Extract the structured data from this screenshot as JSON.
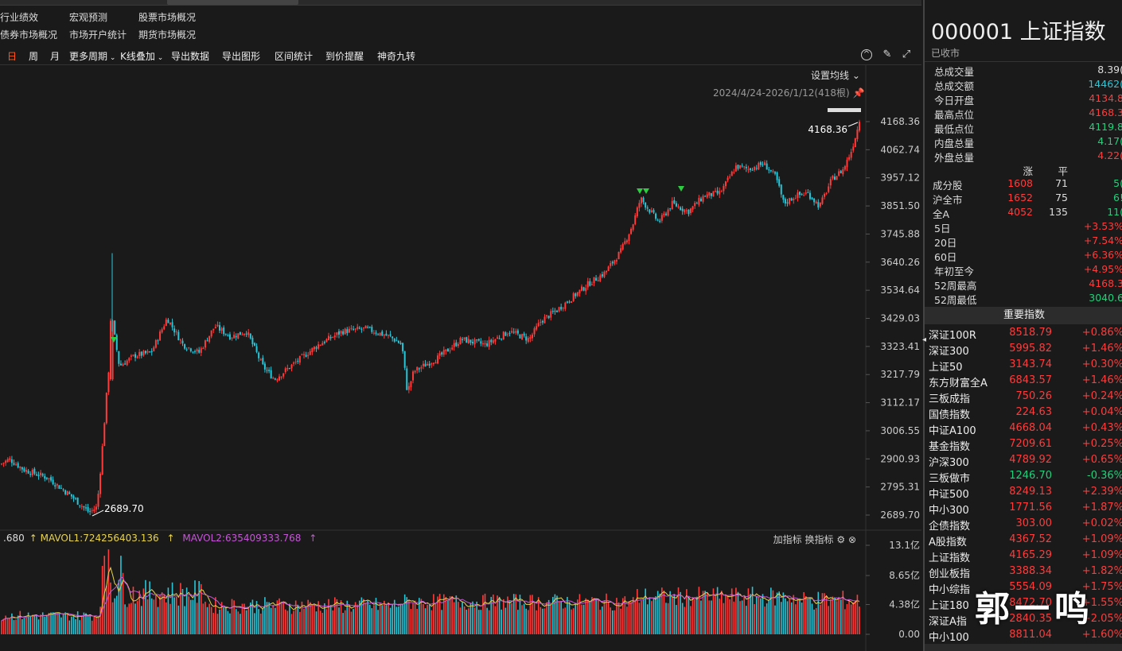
{
  "links": [
    "行业绩效",
    "宏观预测",
    "股票市场概况",
    "债券市场概况",
    "市场开户统计",
    "期货市场概况"
  ],
  "toolbar": {
    "items": [
      "日",
      "周",
      "月",
      "更多周期",
      "K线叠加",
      "导出数据",
      "导出图形",
      "区间统计",
      "到价提醒",
      "神奇九转"
    ],
    "active": "日"
  },
  "chart": {
    "set_ma": "设置均线",
    "range": "2024/4/24-2026/1/12(418根)",
    "high_label": "4168.36",
    "low_label": "2689.70",
    "y_ticks": [
      "4168.36",
      "4062.74",
      "3957.12",
      "3851.50",
      "3745.88",
      "3640.26",
      "3534.64",
      "3429.03",
      "3323.41",
      "3217.79",
      "3112.17",
      "3006.55",
      "2900.93",
      "2795.31",
      "2689.70"
    ],
    "vol_ticks": [
      "13.1亿",
      "8.65亿",
      "4.38亿",
      "0.00"
    ]
  },
  "vol_legend": {
    "prefix": ".680",
    "mavol1": "MAVOL1:724256403.136",
    "mavol2": "MAVOL2:635409333.768",
    "add": "加指标",
    "switch": "换指标"
  },
  "colors": {
    "up": "#ff3b3b",
    "down": "#29c6d8",
    "ma1": "#e8d44d",
    "ma2": "#c557d6",
    "bg": "#1a1a1a"
  },
  "stock": {
    "code_name": "000001 上证指数",
    "status": "已收市"
  },
  "stats": [
    {
      "label": "总成交量",
      "value": "8.39(",
      "color": "white"
    },
    {
      "label": "总成交额",
      "value": "14462(",
      "color": "cyan"
    },
    {
      "label": "今日开盘",
      "value": "4134.8",
      "color": "red"
    },
    {
      "label": "最高点位",
      "value": "4168.3",
      "color": "red"
    },
    {
      "label": "最低点位",
      "value": "4119.8",
      "color": "green"
    },
    {
      "label": "内盘总量",
      "value": "4.17(",
      "color": "green"
    },
    {
      "label": "外盘总量",
      "value": "4.22(",
      "color": "red"
    }
  ],
  "breadth": {
    "head": [
      "涨",
      "平",
      ""
    ],
    "rows": [
      {
        "label": "成分股",
        "up": "1608",
        "flat": "71",
        "down": "5("
      },
      {
        "label": "沪全市",
        "up": "1652",
        "flat": "75",
        "down": "6!"
      },
      {
        "label": "全A",
        "up": "4052",
        "flat": "135",
        "down": "11("
      }
    ]
  },
  "perf": [
    {
      "label": "5日",
      "value": "+3.53%"
    },
    {
      "label": "20日",
      "value": "+7.54%"
    },
    {
      "label": "60日",
      "value": "+6.36%"
    },
    {
      "label": "年初至今",
      "value": "+4.95%"
    },
    {
      "label": "52周最高",
      "value": "4168.3",
      "color": "red"
    },
    {
      "label": "52周最低",
      "value": "3040.6",
      "color": "green"
    }
  ],
  "indices_title": "重要指数",
  "indices": [
    {
      "name": "深证100R",
      "price": "8518.79",
      "chg": "+0.86%",
      "up": true
    },
    {
      "name": "深证300",
      "price": "5995.82",
      "chg": "+1.46%",
      "up": true
    },
    {
      "name": "上证50",
      "price": "3143.74",
      "chg": "+0.30%",
      "up": true
    },
    {
      "name": "东方财富全A",
      "price": "6843.57",
      "chg": "+1.46%",
      "up": true
    },
    {
      "name": "三板成指",
      "price": "750.26",
      "chg": "+0.24%",
      "up": true
    },
    {
      "name": "国债指数",
      "price": "224.63",
      "chg": "+0.04%",
      "up": true
    },
    {
      "name": "中证A100",
      "price": "4668.04",
      "chg": "+0.43%",
      "up": true
    },
    {
      "name": "基金指数",
      "price": "7209.61",
      "chg": "+0.25%",
      "up": true
    },
    {
      "name": "沪深300",
      "price": "4789.92",
      "chg": "+0.65%",
      "up": true
    },
    {
      "name": "三板做市",
      "price": "1246.70",
      "chg": "-0.36%",
      "up": false
    },
    {
      "name": "中证500",
      "price": "8249.13",
      "chg": "+2.39%",
      "up": true
    },
    {
      "name": "中小300",
      "price": "1771.56",
      "chg": "+1.87%",
      "up": true
    },
    {
      "name": "企债指数",
      "price": "303.00",
      "chg": "+0.02%",
      "up": true
    },
    {
      "name": "A股指数",
      "price": "4367.52",
      "chg": "+1.09%",
      "up": true
    },
    {
      "name": "上证指数",
      "price": "4165.29",
      "chg": "+1.09%",
      "up": true
    },
    {
      "name": "创业板指",
      "price": "3388.34",
      "chg": "+1.82%",
      "up": true
    },
    {
      "name": "中小综指",
      "price": "5554.09",
      "chg": "+1.75%",
      "up": true
    },
    {
      "name": "上证180",
      "price": "8472.70",
      "chg": "+1.55%",
      "up": true
    },
    {
      "name": "深证A指",
      "price": "2840.35",
      "chg": "+2.05%",
      "up": true
    },
    {
      "name": "中小100",
      "price": "8811.04",
      "chg": "+1.60%",
      "up": true
    }
  ],
  "watermark": "郭一鸣"
}
